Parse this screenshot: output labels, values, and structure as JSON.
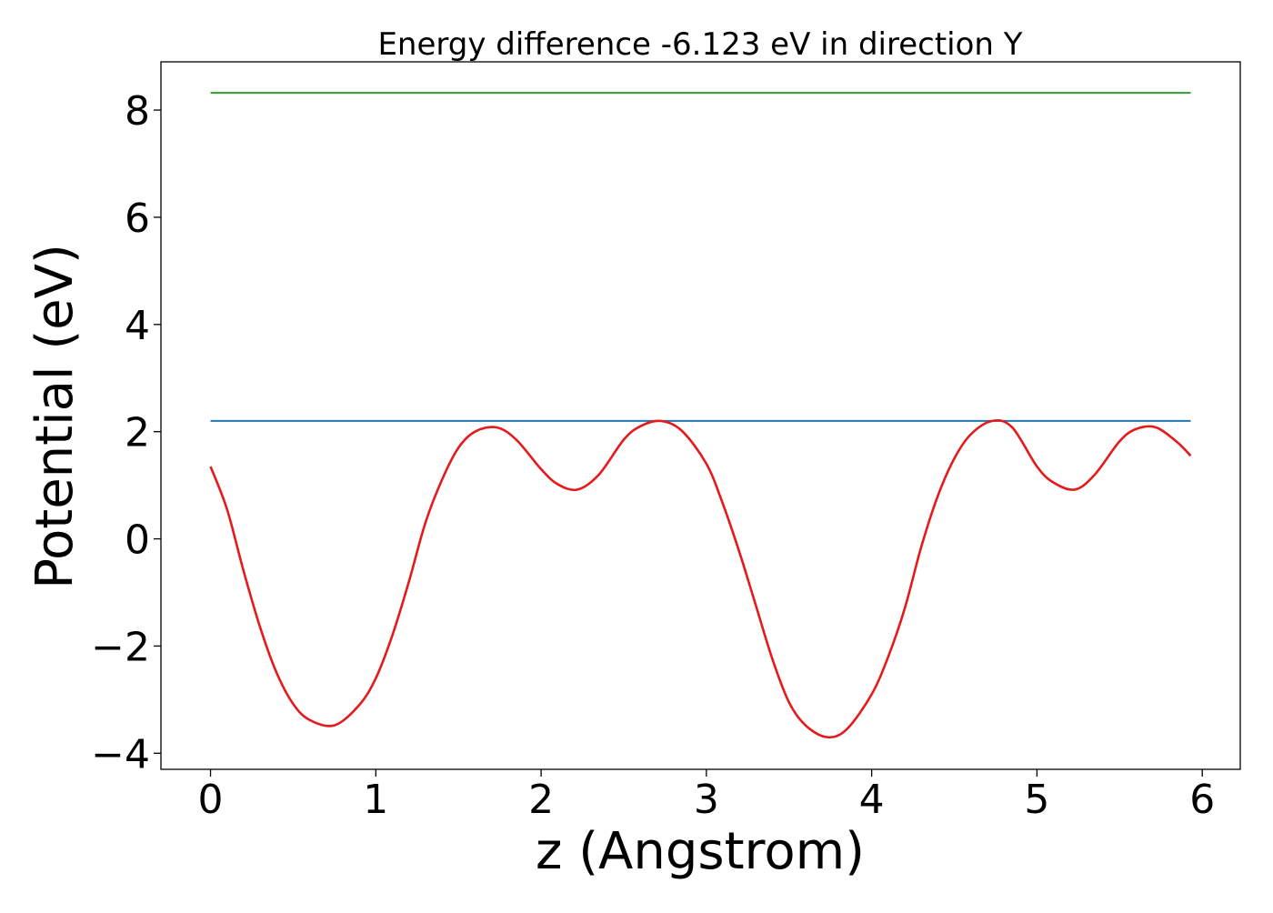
{
  "chart_data": {
    "type": "line",
    "title": "Energy difference -6.123 eV in direction Y",
    "xlabel": "z (Angstrom)",
    "ylabel": "Potential (eV)",
    "xlim": [
      -0.3,
      6.23
    ],
    "ylim": [
      -4.3,
      8.9
    ],
    "x_ticks": [
      0,
      1,
      2,
      3,
      4,
      5,
      6
    ],
    "x_tick_labels": [
      "0",
      "1",
      "2",
      "3",
      "4",
      "5",
      "6"
    ],
    "y_ticks": [
      -4,
      -2,
      0,
      2,
      4,
      6,
      8
    ],
    "y_tick_labels": [
      "−4",
      "−2",
      "0",
      "2",
      "4",
      "6",
      "8"
    ],
    "grid": false,
    "legend": "none",
    "series": [
      {
        "color": "#2ca02c",
        "style": "horizontal",
        "x": [
          0,
          5.93
        ],
        "y": [
          8.32,
          8.32
        ]
      },
      {
        "color": "#1f77b4",
        "style": "horizontal",
        "x": [
          0,
          5.93
        ],
        "y": [
          2.2,
          2.2
        ]
      },
      {
        "color": "#e41a1c",
        "style": "curve",
        "x": [
          0,
          0.1,
          0.2,
          0.3,
          0.4,
          0.5,
          0.6,
          0.75,
          0.9,
          1.0,
          1.1,
          1.2,
          1.3,
          1.4,
          1.5,
          1.6,
          1.73,
          1.85,
          2.0,
          2.1,
          2.22,
          2.35,
          2.5,
          2.6,
          2.72,
          2.85,
          3.0,
          3.1,
          3.2,
          3.3,
          3.4,
          3.5,
          3.6,
          3.73,
          3.85,
          4.0,
          4.1,
          4.2,
          4.3,
          4.4,
          4.5,
          4.6,
          4.73,
          4.85,
          5.0,
          5.1,
          5.23,
          5.35,
          5.5,
          5.6,
          5.72,
          5.85,
          5.93
        ],
        "y": [
          1.35,
          0.55,
          -0.6,
          -1.65,
          -2.5,
          -3.08,
          -3.38,
          -3.48,
          -3.1,
          -2.6,
          -1.8,
          -0.8,
          0.3,
          1.1,
          1.7,
          2.0,
          2.08,
          1.85,
          1.3,
          1.02,
          0.92,
          1.2,
          1.85,
          2.1,
          2.2,
          2.02,
          1.4,
          0.65,
          -0.25,
          -1.25,
          -2.25,
          -3.05,
          -3.48,
          -3.7,
          -3.55,
          -2.9,
          -2.2,
          -1.3,
          -0.15,
          0.8,
          1.5,
          1.95,
          2.2,
          2.08,
          1.35,
          1.05,
          0.92,
          1.2,
          1.82,
          2.05,
          2.08,
          1.8,
          1.55
        ]
      }
    ]
  }
}
